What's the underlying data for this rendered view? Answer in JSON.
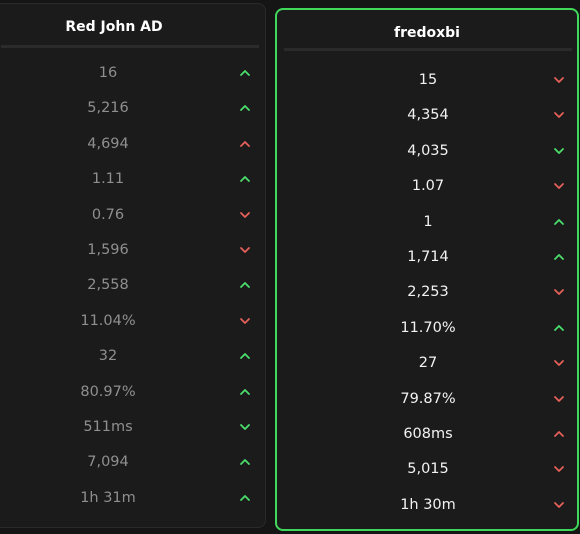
{
  "panels": [
    {
      "name": "Red John AD",
      "value_color": "#8f8f8f",
      "rows": [
        {
          "value": "16",
          "arrow": "up",
          "color": "#4ade6a"
        },
        {
          "value": "5,216",
          "arrow": "up",
          "color": "#4ade6a"
        },
        {
          "value": "4,694",
          "arrow": "up",
          "color": "#e5605a"
        },
        {
          "value": "1.11",
          "arrow": "up",
          "color": "#4ade6a"
        },
        {
          "value": "0.76",
          "arrow": "down",
          "color": "#e5605a"
        },
        {
          "value": "1,596",
          "arrow": "down",
          "color": "#e5605a"
        },
        {
          "value": "2,558",
          "arrow": "up",
          "color": "#4ade6a"
        },
        {
          "value": "11.04%",
          "arrow": "down",
          "color": "#e5605a"
        },
        {
          "value": "32",
          "arrow": "up",
          "color": "#4ade6a"
        },
        {
          "value": "80.97%",
          "arrow": "up",
          "color": "#4ade6a"
        },
        {
          "value": "511ms",
          "arrow": "down",
          "color": "#4ade6a"
        },
        {
          "value": "7,094",
          "arrow": "up",
          "color": "#4ade6a"
        },
        {
          "value": "1h 31m",
          "arrow": "up",
          "color": "#4ade6a"
        }
      ]
    },
    {
      "name": "fredoxbi",
      "value_color": "#f2f2f2",
      "rows": [
        {
          "value": "15",
          "arrow": "down",
          "color": "#e5605a"
        },
        {
          "value": "4,354",
          "arrow": "down",
          "color": "#e5605a"
        },
        {
          "value": "4,035",
          "arrow": "down",
          "color": "#4ade6a"
        },
        {
          "value": "1.07",
          "arrow": "down",
          "color": "#e5605a"
        },
        {
          "value": "1",
          "arrow": "up",
          "color": "#4ade6a"
        },
        {
          "value": "1,714",
          "arrow": "up",
          "color": "#4ade6a"
        },
        {
          "value": "2,253",
          "arrow": "down",
          "color": "#e5605a"
        },
        {
          "value": "11.70%",
          "arrow": "up",
          "color": "#4ade6a"
        },
        {
          "value": "27",
          "arrow": "down",
          "color": "#e5605a"
        },
        {
          "value": "79.87%",
          "arrow": "down",
          "color": "#e5605a"
        },
        {
          "value": "608ms",
          "arrow": "up",
          "color": "#e5605a"
        },
        {
          "value": "5,015",
          "arrow": "down",
          "color": "#e5605a"
        },
        {
          "value": "1h 30m",
          "arrow": "down",
          "color": "#e5605a"
        }
      ]
    }
  ]
}
